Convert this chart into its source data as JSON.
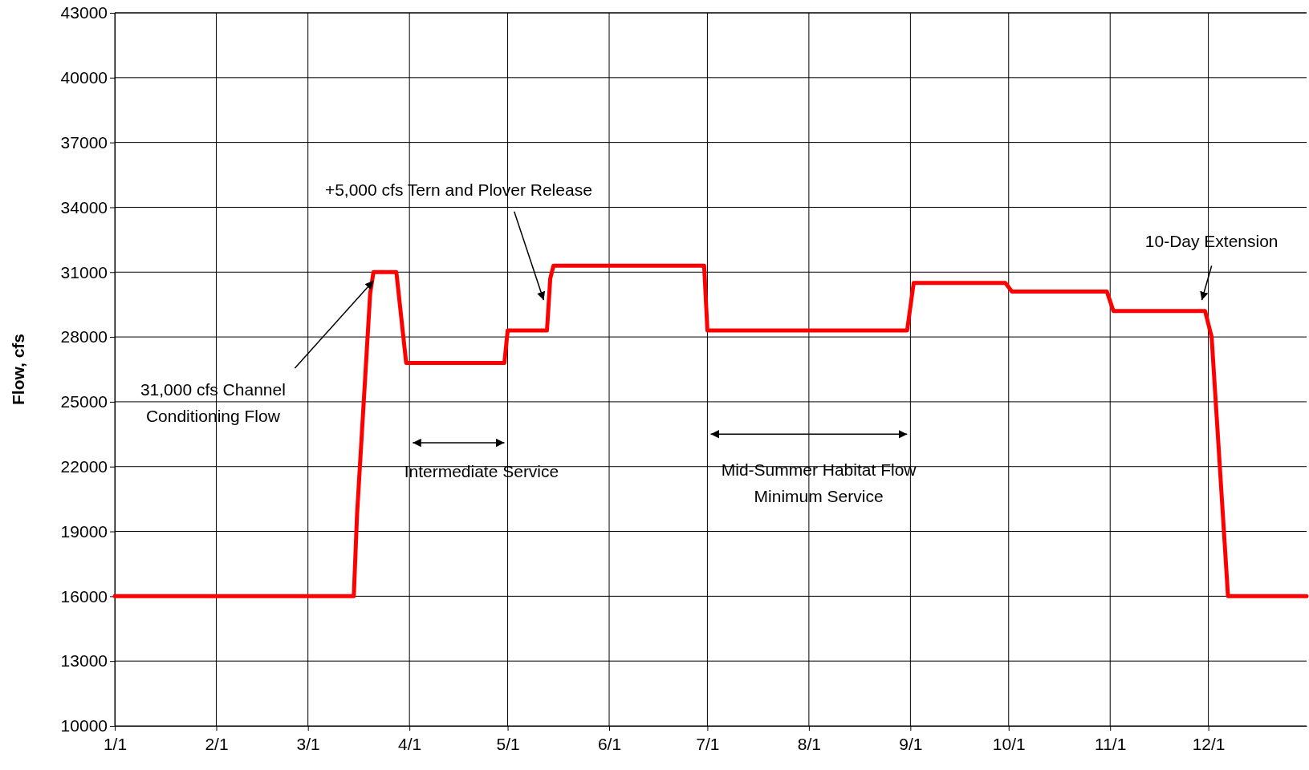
{
  "chart_data": {
    "type": "line",
    "ylabel": "Flow, cfs",
    "x": [
      "--01-01",
      "--03-15",
      "--03-16",
      "--03-20",
      "--03-21",
      "--03-28",
      "--03-31",
      "--04-30",
      "--05-01",
      "--05-13",
      "--05-14",
      "--05-15",
      "--06-30",
      "--07-01",
      "--08-31",
      "--09-02",
      "--09-30",
      "--10-02",
      "--10-31",
      "--11-02",
      "--11-30",
      "--12-02",
      "--12-07",
      "--12-31"
    ],
    "series": [
      {
        "color": "#ff0000",
        "values": [
          16000,
          16000,
          19800,
          30000,
          31000,
          31000,
          26800,
          26800,
          28300,
          28300,
          30700,
          31300,
          31300,
          28300,
          28300,
          30500,
          30500,
          30100,
          30100,
          29200,
          29200,
          28000,
          16000,
          16000
        ]
      }
    ],
    "xlim": [
      "--01-01",
      "--12-31"
    ],
    "xticks": [
      {
        "value": "--01-01",
        "label": "1/1"
      },
      {
        "value": "--02-01",
        "label": "2/1"
      },
      {
        "value": "--03-01",
        "label": "3/1"
      },
      {
        "value": "--04-01",
        "label": "4/1"
      },
      {
        "value": "--05-01",
        "label": "5/1"
      },
      {
        "value": "--06-01",
        "label": "6/1"
      },
      {
        "value": "--07-01",
        "label": "7/1"
      },
      {
        "value": "--08-01",
        "label": "8/1"
      },
      {
        "value": "--09-01",
        "label": "9/1"
      },
      {
        "value": "--10-01",
        "label": "10/1"
      },
      {
        "value": "--11-01",
        "label": "11/1"
      },
      {
        "value": "--12-01",
        "label": "12/1"
      }
    ],
    "ylim": [
      10000,
      43000
    ],
    "yticks": [
      10000,
      13000,
      16000,
      19000,
      22000,
      25000,
      28000,
      31000,
      34000,
      37000,
      40000,
      43000
    ],
    "grid": true,
    "marker": "none",
    "line_style": "solid",
    "annotations": [
      {
        "text": "31,000 cfs Channel\nConditioning Flow",
        "x": "--03-21",
        "y": 30600
      },
      {
        "text": "+5,000 cfs Tern and Plover Release",
        "x": "--05-12",
        "y": 29700
      },
      "Intermediate Service",
      "Mid-Summer Habitat Flow\nMinimum Service",
      "10-Day Extension"
    ]
  }
}
